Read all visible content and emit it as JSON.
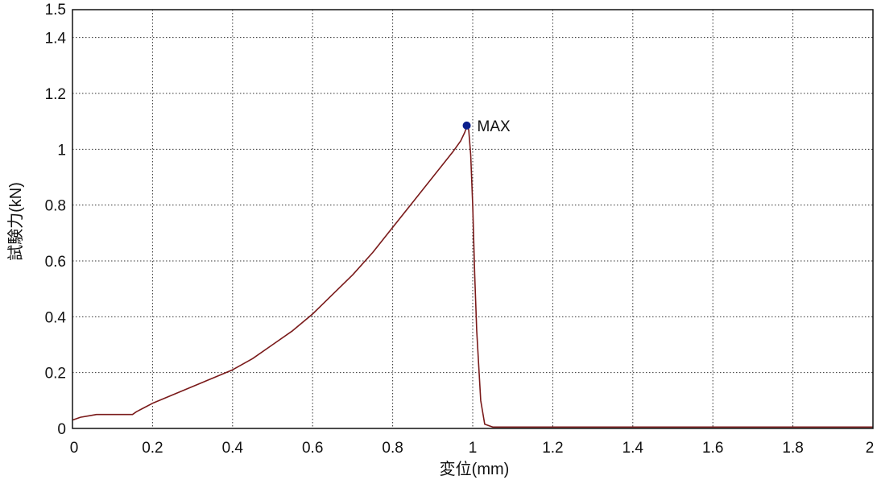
{
  "chart_data": {
    "type": "line",
    "title": "",
    "xlabel": "変位(mm)",
    "ylabel": "試験力(kN)",
    "xlim": [
      0,
      2
    ],
    "ylim": [
      0,
      1.5
    ],
    "x_ticks": [
      0,
      0.2,
      0.4,
      0.6,
      0.8,
      1,
      1.2,
      1.4,
      1.6,
      1.8,
      2
    ],
    "x_tick_labels": [
      "0",
      "0.2",
      "0.4",
      "0.6",
      "0.8",
      "1",
      "1.2",
      "1.4",
      "1.6",
      "1.8",
      "2"
    ],
    "y_ticks": [
      0,
      0.2,
      0.4,
      0.6,
      0.8,
      1,
      1.2,
      1.4,
      1.5
    ],
    "y_tick_labels": [
      "0",
      "0.2",
      "0.4",
      "0.6",
      "0.8",
      "1",
      "1.2",
      "1.4",
      "1.5"
    ],
    "grid": true,
    "series": [
      {
        "color": "#7a1a1a",
        "x": [
          0,
          0.02,
          0.04,
          0.06,
          0.08,
          0.1,
          0.12,
          0.14,
          0.15,
          0.16,
          0.18,
          0.2,
          0.25,
          0.3,
          0.35,
          0.4,
          0.45,
          0.5,
          0.55,
          0.6,
          0.65,
          0.7,
          0.75,
          0.8,
          0.85,
          0.9,
          0.95,
          0.97,
          0.98,
          0.985,
          0.99,
          0.995,
          1.0,
          1.005,
          1.01,
          1.02,
          1.03,
          1.05,
          1.1,
          1.2,
          1.3,
          1.4,
          1.5,
          1.6,
          1.7,
          1.8,
          1.9,
          2.0
        ],
        "y": [
          0.03,
          0.04,
          0.045,
          0.05,
          0.05,
          0.05,
          0.05,
          0.05,
          0.05,
          0.06,
          0.075,
          0.09,
          0.12,
          0.15,
          0.18,
          0.21,
          0.25,
          0.3,
          0.35,
          0.41,
          0.48,
          0.55,
          0.63,
          0.72,
          0.81,
          0.9,
          0.99,
          1.03,
          1.06,
          1.08,
          1.07,
          0.98,
          0.8,
          0.55,
          0.35,
          0.1,
          0.015,
          0.005,
          0.005,
          0.005,
          0.005,
          0.005,
          0.005,
          0.005,
          0.005,
          0.005,
          0.005,
          0.005
        ]
      }
    ],
    "annotations": [
      {
        "label": "MAX",
        "x": 0.985,
        "y": 1.085,
        "marker_color": "#0b1f8c"
      }
    ]
  }
}
